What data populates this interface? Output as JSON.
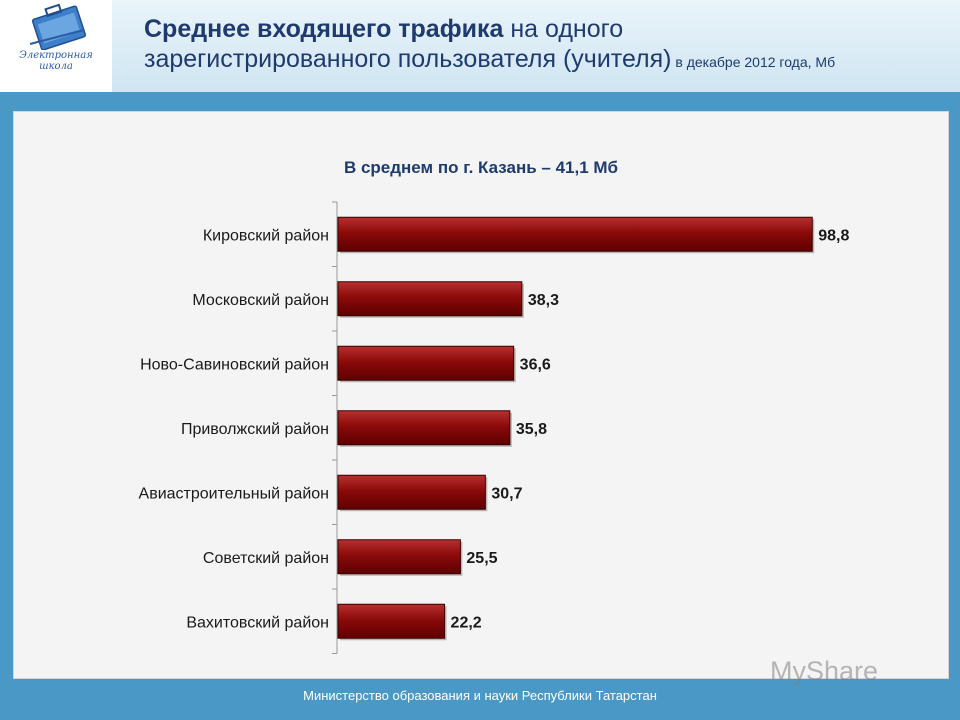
{
  "header": {
    "title_bold": "Среднее входящего трафика",
    "title_regular_1": " на одного",
    "title_regular_2": "зарегистрированного пользователя (учителя)",
    "title_small": " в декабре 2012 года, Мб",
    "logo_text_1": "Электронная",
    "logo_text_2": "школа"
  },
  "footer": {
    "text": "Министерство образования и науки Республики Татарстан"
  },
  "watermark": {
    "text": "MySharе"
  },
  "colors": {
    "bar": "#8b0a0a",
    "bar_dark": "#5e0000",
    "bar_light": "#b83030"
  },
  "chart_data": {
    "type": "bar",
    "orientation": "horizontal",
    "title": "В среднем по г. Казань – 41,1 Мб",
    "categories": [
      "Кировский район",
      "Московский район",
      "Ново-Савиновский район",
      "Приволжский район",
      "Авиастроительный район",
      "Советский район",
      "Вахитовский район"
    ],
    "values": [
      98.8,
      38.3,
      36.6,
      35.8,
      30.7,
      25.5,
      22.2
    ],
    "labels": [
      "98,8",
      "38,3",
      "36,6",
      "35,8",
      "30,7",
      "25,5",
      "22,2"
    ],
    "xlim": [
      0,
      100
    ],
    "grid": false,
    "legend": false
  }
}
